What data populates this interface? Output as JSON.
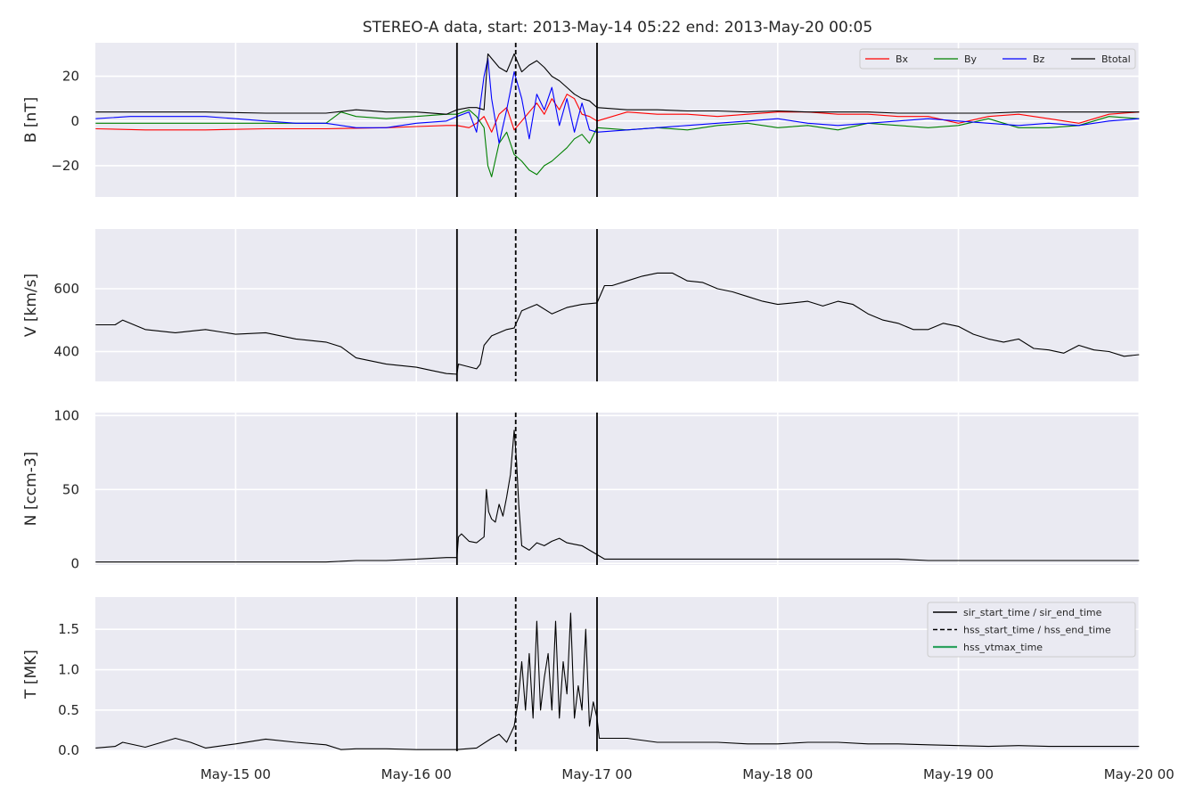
{
  "title": "STEREO-A data, start: 2013-May-14 05:22  end: 2013-May-20 00:05",
  "x_axis": {
    "range_hours": [
      5.367,
      144.083
    ],
    "ticks": [
      {
        "label": "May-15 00",
        "hours": 24
      },
      {
        "label": "May-16 00",
        "hours": 48
      },
      {
        "label": "May-17 00",
        "hours": 72
      },
      {
        "label": "May-18 00",
        "hours": 96
      },
      {
        "label": "May-19 00",
        "hours": 120
      },
      {
        "label": "May-20 00",
        "hours": 144
      }
    ]
  },
  "events": {
    "sir_start_hours": 53.4,
    "hss_start_hours": 61.2,
    "sir_end_hours": 72.0,
    "colors": {
      "sir": "#000000",
      "hss": "#000000",
      "vtmax": "#2ca25f"
    }
  },
  "legends": {
    "b_panel": [
      "Bx",
      "By",
      "Bz",
      "Btotal"
    ],
    "t_panel": [
      "sir_start_time / sir_end_time",
      "hss_start_time / hss_end_time",
      "hss_vtmax_time"
    ]
  },
  "chart_data": [
    {
      "type": "line",
      "id": "b",
      "ylabel": "B [nT]",
      "ylim": [
        -34,
        35
      ],
      "yticks": [
        {
          "v": 20,
          "label": "20"
        },
        {
          "v": 0,
          "label": "0"
        },
        {
          "v": -20,
          "label": "−20"
        }
      ],
      "series": [
        {
          "name": "Bx",
          "color": "#ff0000",
          "x": [
            5.4,
            12,
            20,
            28,
            36,
            44,
            48,
            52,
            53.4,
            55,
            56,
            57,
            58,
            59,
            60,
            61,
            62,
            63,
            64,
            65,
            66,
            67,
            68,
            69,
            70,
            71,
            72,
            76,
            80,
            84,
            88,
            92,
            96,
            100,
            104,
            108,
            112,
            116,
            120,
            124,
            128,
            132,
            136,
            140,
            144
          ],
          "y": [
            -3.5,
            -4,
            -4,
            -3.5,
            -3.5,
            -3,
            -2.5,
            -2,
            -2,
            -3,
            -1,
            2,
            -5,
            3,
            6,
            -4,
            0,
            4,
            8,
            3,
            10,
            5,
            12,
            10,
            3,
            2,
            0,
            4,
            3,
            3,
            2,
            3,
            4,
            4,
            3,
            3,
            2,
            2,
            -1,
            2,
            3,
            1,
            -1,
            3,
            4
          ]
        },
        {
          "name": "By",
          "color": "#008000",
          "x": [
            5.4,
            12,
            20,
            28,
            36,
            38,
            40,
            44,
            48,
            52,
            53.4,
            55,
            56,
            57,
            57.5,
            58,
            59,
            60,
            61,
            62,
            63,
            64,
            65,
            66,
            67,
            68,
            69,
            70,
            71,
            72,
            76,
            80,
            84,
            88,
            92,
            96,
            100,
            104,
            108,
            112,
            116,
            120,
            124,
            128,
            132,
            136,
            140,
            144
          ],
          "y": [
            -1,
            -1,
            -1,
            -1,
            -1,
            4,
            2,
            1,
            2,
            3,
            3,
            5,
            2,
            -3,
            -20,
            -25,
            -10,
            -5,
            -15,
            -18,
            -22,
            -24,
            -20,
            -18,
            -15,
            -12,
            -8,
            -6,
            -10,
            -3,
            -4,
            -3,
            -4,
            -2,
            -1,
            -3,
            -2,
            -4,
            -1,
            -2,
            -3,
            -2,
            1,
            -3,
            -3,
            -2,
            2,
            1
          ]
        },
        {
          "name": "Bz",
          "color": "#0000ff",
          "x": [
            5.4,
            10,
            16,
            20,
            24,
            28,
            32,
            36,
            40,
            44,
            48,
            52,
            53.4,
            55,
            56,
            57,
            57.5,
            58,
            59,
            60,
            61,
            62,
            63,
            64,
            65,
            66,
            67,
            68,
            69,
            70,
            71,
            72,
            76,
            80,
            84,
            88,
            92,
            96,
            100,
            104,
            108,
            112,
            116,
            120,
            124,
            128,
            132,
            136,
            140,
            144
          ],
          "y": [
            1,
            2,
            2,
            2,
            1,
            0,
            -1,
            -1,
            -3,
            -3,
            -1,
            0,
            2,
            4,
            -5,
            20,
            28,
            10,
            -10,
            5,
            22,
            10,
            -8,
            12,
            5,
            15,
            -2,
            10,
            -5,
            8,
            -4,
            -5,
            -4,
            -3,
            -2,
            -1,
            0,
            1,
            -1,
            -2,
            -1,
            0,
            1,
            0,
            -1,
            -2,
            -1,
            -2,
            0,
            1
          ]
        },
        {
          "name": "Btotal",
          "color": "#000000",
          "x": [
            5.4,
            12,
            20,
            28,
            36,
            40,
            44,
            48,
            52,
            53.4,
            55,
            56,
            57,
            57.5,
            58,
            59,
            60,
            61,
            62,
            63,
            64,
            65,
            66,
            67,
            68,
            69,
            70,
            71,
            72,
            76,
            80,
            84,
            88,
            92,
            96,
            100,
            104,
            108,
            112,
            116,
            120,
            124,
            128,
            132,
            136,
            140,
            144
          ],
          "y": [
            4,
            4,
            4,
            3.5,
            3.5,
            5,
            4,
            4,
            3,
            5,
            6,
            6,
            5,
            30,
            28,
            24,
            22,
            30,
            22,
            25,
            27,
            24,
            20,
            18,
            15,
            12,
            10,
            9,
            6,
            5,
            5,
            4.5,
            4.5,
            4,
            4.5,
            4,
            4,
            4,
            3.5,
            3.5,
            3.5,
            3.5,
            4,
            4,
            4,
            4,
            4
          ]
        }
      ]
    },
    {
      "type": "line",
      "id": "v",
      "ylabel": "V [km/s]",
      "ylim": [
        305,
        790
      ],
      "yticks": [
        {
          "v": 600,
          "label": "600"
        },
        {
          "v": 400,
          "label": "400"
        }
      ],
      "series": [
        {
          "name": "V",
          "color": "#000000",
          "x": [
            5.4,
            8,
            9,
            12,
            16,
            20,
            24,
            28,
            32,
            36,
            38,
            40,
            44,
            48,
            50,
            52,
            53.4,
            53.6,
            56,
            56.5,
            57,
            58,
            60,
            61,
            62,
            63,
            64,
            66,
            68,
            70,
            72,
            73,
            74,
            76,
            78,
            80,
            82,
            84,
            86,
            88,
            90,
            92,
            94,
            96,
            98,
            100,
            102,
            104,
            106,
            108,
            110,
            112,
            114,
            116,
            118,
            120,
            122,
            124,
            126,
            128,
            130,
            132,
            134,
            136,
            138,
            140,
            142,
            144
          ],
          "y": [
            485,
            485,
            500,
            470,
            460,
            470,
            455,
            460,
            440,
            430,
            415,
            380,
            360,
            350,
            340,
            330,
            328,
            360,
            345,
            360,
            420,
            450,
            470,
            475,
            530,
            540,
            550,
            520,
            540,
            550,
            555,
            610,
            610,
            625,
            640,
            650,
            650,
            625,
            620,
            600,
            590,
            575,
            560,
            550,
            555,
            560,
            545,
            560,
            550,
            520,
            500,
            490,
            470,
            470,
            490,
            480,
            455,
            440,
            430,
            440,
            410,
            405,
            395,
            420,
            405,
            400,
            385,
            390
          ]
        }
      ]
    },
    {
      "type": "line",
      "id": "n",
      "ylabel": "N [ccm-3]",
      "ylim": [
        -1,
        102
      ],
      "yticks": [
        {
          "v": 100,
          "label": "100"
        },
        {
          "v": 50,
          "label": "50"
        },
        {
          "v": 0,
          "label": "0"
        }
      ],
      "series": [
        {
          "name": "N",
          "color": "#000000",
          "x": [
            5.4,
            8,
            12,
            16,
            20,
            24,
            28,
            32,
            36,
            40,
            44,
            48,
            52,
            53.4,
            53.6,
            54,
            55,
            56,
            57,
            57.3,
            57.6,
            58,
            58.5,
            59,
            59.5,
            60,
            60.5,
            61,
            61.3,
            61.6,
            62,
            63,
            64,
            65,
            66,
            67,
            68,
            69,
            70,
            71,
            72,
            73,
            76,
            80,
            84,
            88,
            92,
            96,
            100,
            104,
            108,
            112,
            116,
            120,
            124,
            128,
            132,
            136,
            140,
            144
          ],
          "y": [
            1,
            1,
            1,
            1,
            1,
            1,
            1,
            1,
            1,
            2,
            2,
            3,
            4,
            4,
            18,
            20,
            15,
            14,
            18,
            50,
            35,
            30,
            28,
            40,
            32,
            45,
            60,
            90,
            70,
            40,
            12,
            9,
            14,
            12,
            15,
            17,
            14,
            13,
            12,
            9,
            6,
            3,
            3,
            3,
            3,
            3,
            3,
            3,
            3,
            3,
            3,
            3,
            2,
            2,
            2,
            2,
            2,
            2,
            2,
            2
          ]
        }
      ]
    },
    {
      "type": "line",
      "id": "t",
      "ylabel": "T [MK]",
      "ylim": [
        -0.01,
        1.9
      ],
      "yticks": [
        {
          "v": 1.5,
          "label": "1.5"
        },
        {
          "v": 1.0,
          "label": "1.0"
        },
        {
          "v": 0.5,
          "label": "0.5"
        },
        {
          "v": 0.0,
          "label": "0.0"
        }
      ],
      "series": [
        {
          "name": "T",
          "color": "#000000",
          "x": [
            5.4,
            8,
            9,
            12,
            16,
            18,
            20,
            24,
            28,
            32,
            36,
            38,
            40,
            44,
            48,
            52,
            53.4,
            56,
            58,
            59,
            60,
            61,
            61.5,
            62,
            62.5,
            63,
            63.5,
            64,
            64.5,
            65,
            65.5,
            66,
            66.5,
            67,
            67.5,
            68,
            68.5,
            69,
            69.5,
            70,
            70.5,
            71,
            71.5,
            72,
            72.3,
            76,
            80,
            84,
            88,
            92,
            96,
            100,
            104,
            108,
            112,
            116,
            120,
            124,
            128,
            132,
            136,
            140,
            144
          ],
          "y": [
            0.03,
            0.05,
            0.1,
            0.04,
            0.15,
            0.1,
            0.03,
            0.08,
            0.14,
            0.1,
            0.07,
            0.01,
            0.02,
            0.02,
            0.01,
            0.01,
            0.01,
            0.03,
            0.15,
            0.2,
            0.1,
            0.3,
            0.6,
            1.1,
            0.5,
            1.2,
            0.4,
            1.6,
            0.5,
            0.9,
            1.2,
            0.5,
            1.6,
            0.4,
            1.1,
            0.7,
            1.7,
            0.4,
            0.8,
            0.5,
            1.5,
            0.3,
            0.6,
            0.4,
            0.15,
            0.15,
            0.1,
            0.1,
            0.1,
            0.08,
            0.08,
            0.1,
            0.1,
            0.08,
            0.08,
            0.07,
            0.06,
            0.05,
            0.06,
            0.05,
            0.05,
            0.05,
            0.05
          ]
        }
      ]
    }
  ]
}
